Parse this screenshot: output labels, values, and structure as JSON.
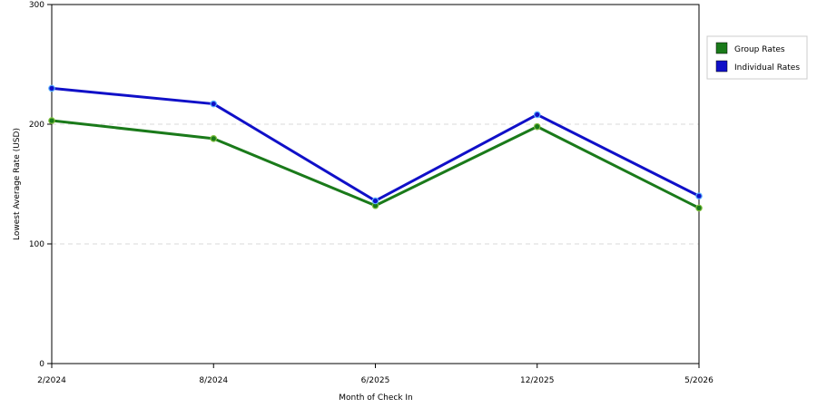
{
  "chart_data": {
    "type": "line",
    "title": "",
    "xlabel": "Month of Check In",
    "ylabel": "Lowest Average Rate (USD)",
    "categories": [
      "2/2024",
      "8/2024",
      "6/2025",
      "12/2025",
      "5/2026"
    ],
    "ylim": [
      0,
      300
    ],
    "yticks": [
      "0",
      "100",
      "200",
      "300"
    ],
    "grid": true,
    "legend_position": "right",
    "series": [
      {
        "name": "Group Rates",
        "color": "#1a7a1a",
        "values": [
          203,
          188,
          132,
          198,
          130
        ]
      },
      {
        "name": "Individual Rates",
        "color": "#1010c8",
        "values": [
          230,
          217,
          136,
          208,
          140
        ]
      }
    ]
  }
}
